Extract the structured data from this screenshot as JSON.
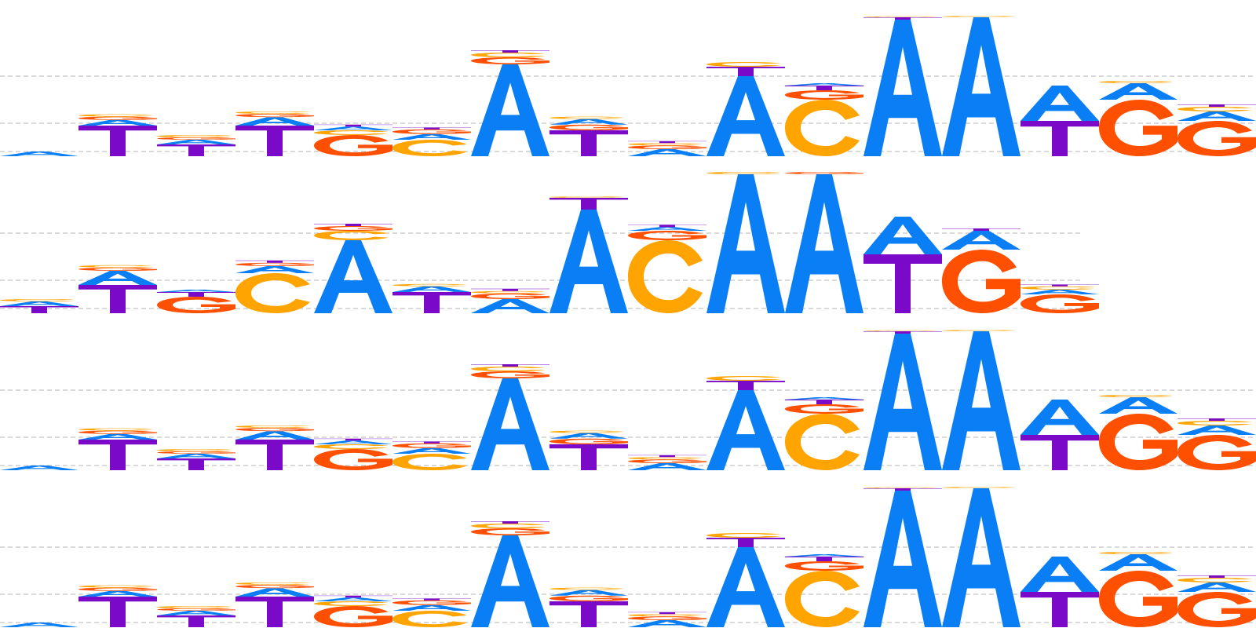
{
  "colors": {
    "A": "#0a7ff5",
    "C": "#ffa400",
    "G": "#ff4f00",
    "T": "#7a0ac8",
    "grid": "#b5b5b5"
  },
  "chart_data": [
    {
      "type": "sequence-logo",
      "grid": true,
      "columns": [
        [
          [
            "A",
            0.1
          ]
        ],
        [
          [
            "T",
            0.65
          ],
          [
            "A",
            0.12
          ],
          [
            "G",
            0.07
          ],
          [
            "C",
            0.05
          ]
        ],
        [
          [
            "T",
            0.25
          ],
          [
            "A",
            0.1
          ],
          [
            "G",
            0.05
          ],
          [
            "C",
            0.05
          ]
        ],
        [
          [
            "T",
            0.65
          ],
          [
            "A",
            0.18
          ],
          [
            "G",
            0.07
          ],
          [
            "C",
            0.05
          ]
        ],
        [
          [
            "G",
            0.45
          ],
          [
            "C",
            0.1
          ],
          [
            "A",
            0.08
          ],
          [
            "T",
            0.04
          ]
        ],
        [
          [
            "C",
            0.35
          ],
          [
            "A",
            0.12
          ],
          [
            "G",
            0.1
          ],
          [
            "T",
            0.04
          ]
        ],
        [
          [
            "A",
            1.95
          ],
          [
            "G",
            0.15
          ],
          [
            "C",
            0.1
          ],
          [
            "T",
            0.05
          ]
        ],
        [
          [
            "T",
            0.55
          ],
          [
            "G",
            0.12
          ],
          [
            "A",
            0.12
          ],
          [
            "C",
            0.05
          ]
        ],
        [
          [
            "A",
            0.15
          ],
          [
            "G",
            0.08
          ],
          [
            "C",
            0.05
          ],
          [
            "T",
            0.04
          ]
        ],
        [
          [
            "A",
            1.7
          ],
          [
            "T",
            0.2
          ],
          [
            "C",
            0.1
          ]
        ],
        [
          [
            "C",
            1.2
          ],
          [
            "G",
            0.2
          ],
          [
            "T",
            0.1
          ],
          [
            "A",
            0.05
          ]
        ],
        [
          [
            "A",
            2.9
          ],
          [
            "T",
            0.05
          ],
          [
            "C",
            0.02
          ]
        ],
        [
          [
            "A",
            2.95
          ],
          [
            "C",
            0.03
          ]
        ],
        [
          [
            "T",
            0.75
          ],
          [
            "A",
            0.75
          ]
        ],
        [
          [
            "G",
            1.2
          ],
          [
            "A",
            0.35
          ],
          [
            "C",
            0.05
          ]
        ],
        [
          [
            "G",
            0.75
          ],
          [
            "A",
            0.2
          ],
          [
            "C",
            0.1
          ],
          [
            "T",
            0.05
          ]
        ]
      ]
    },
    {
      "type": "sequence-logo",
      "grid": true,
      "columns": [
        [
          [
            "T",
            0.15
          ],
          [
            "A",
            0.1
          ],
          [
            "C",
            0.05
          ]
        ],
        [
          [
            "T",
            0.6
          ],
          [
            "A",
            0.3
          ],
          [
            "G",
            0.07
          ],
          [
            "C",
            0.05
          ]
        ],
        [
          [
            "G",
            0.35
          ],
          [
            "T",
            0.1
          ],
          [
            "A",
            0.05
          ]
        ],
        [
          [
            "C",
            0.85
          ],
          [
            "A",
            0.15
          ],
          [
            "G",
            0.07
          ],
          [
            "T",
            0.05
          ]
        ],
        [
          [
            "A",
            1.55
          ],
          [
            "C",
            0.2
          ],
          [
            "G",
            0.1
          ],
          [
            "T",
            0.05
          ]
        ],
        [
          [
            "T",
            0.45
          ],
          [
            "A",
            0.12
          ],
          [
            "C",
            0.05
          ]
        ],
        [
          [
            "A",
            0.3
          ],
          [
            "G",
            0.12
          ],
          [
            "C",
            0.05
          ],
          [
            "T",
            0.05
          ]
        ],
        [
          [
            "A",
            2.2
          ],
          [
            "T",
            0.25
          ],
          [
            "C",
            0.03
          ]
        ],
        [
          [
            "C",
            1.55
          ],
          [
            "G",
            0.2
          ],
          [
            "A",
            0.08
          ],
          [
            "T",
            0.05
          ]
        ],
        [
          [
            "A",
            2.95
          ],
          [
            "C",
            0.05
          ]
        ],
        [
          [
            "A",
            2.95
          ],
          [
            "G",
            0.05
          ]
        ],
        [
          [
            "T",
            1.25
          ],
          [
            "A",
            0.8
          ]
        ],
        [
          [
            "G",
            1.35
          ],
          [
            "A",
            0.4
          ],
          [
            "T",
            0.05
          ]
        ],
        [
          [
            "G",
            0.4
          ],
          [
            "A",
            0.1
          ],
          [
            "C",
            0.07
          ],
          [
            "T",
            0.04
          ]
        ]
      ]
    },
    {
      "type": "sequence-logo",
      "grid": true,
      "columns": [
        [
          [
            "A",
            0.1
          ]
        ],
        [
          [
            "T",
            0.65
          ],
          [
            "A",
            0.12
          ],
          [
            "G",
            0.07
          ],
          [
            "C",
            0.05
          ]
        ],
        [
          [
            "T",
            0.25
          ],
          [
            "A",
            0.1
          ],
          [
            "G",
            0.05
          ],
          [
            "C",
            0.05
          ]
        ],
        [
          [
            "T",
            0.65
          ],
          [
            "A",
            0.18
          ],
          [
            "G",
            0.07
          ],
          [
            "C",
            0.05
          ]
        ],
        [
          [
            "G",
            0.45
          ],
          [
            "C",
            0.1
          ],
          [
            "A",
            0.08
          ],
          [
            "T",
            0.04
          ]
        ],
        [
          [
            "C",
            0.35
          ],
          [
            "A",
            0.12
          ],
          [
            "G",
            0.1
          ],
          [
            "T",
            0.04
          ]
        ],
        [
          [
            "A",
            1.95
          ],
          [
            "G",
            0.15
          ],
          [
            "C",
            0.1
          ],
          [
            "T",
            0.05
          ]
        ],
        [
          [
            "T",
            0.55
          ],
          [
            "G",
            0.12
          ],
          [
            "A",
            0.12
          ],
          [
            "C",
            0.05
          ]
        ],
        [
          [
            "A",
            0.15
          ],
          [
            "G",
            0.08
          ],
          [
            "C",
            0.05
          ],
          [
            "T",
            0.04
          ]
        ],
        [
          [
            "A",
            1.7
          ],
          [
            "T",
            0.2
          ],
          [
            "C",
            0.1
          ]
        ],
        [
          [
            "C",
            1.2
          ],
          [
            "G",
            0.2
          ],
          [
            "T",
            0.1
          ],
          [
            "A",
            0.05
          ]
        ],
        [
          [
            "A",
            2.9
          ],
          [
            "T",
            0.05
          ],
          [
            "C",
            0.02
          ]
        ],
        [
          [
            "A",
            2.95
          ],
          [
            "C",
            0.03
          ]
        ],
        [
          [
            "T",
            0.75
          ],
          [
            "A",
            0.75
          ]
        ],
        [
          [
            "G",
            1.2
          ],
          [
            "A",
            0.35
          ],
          [
            "C",
            0.05
          ]
        ],
        [
          [
            "G",
            0.75
          ],
          [
            "A",
            0.2
          ],
          [
            "C",
            0.1
          ],
          [
            "T",
            0.05
          ]
        ]
      ]
    },
    {
      "type": "sequence-logo",
      "grid": true,
      "columns": [
        [
          [
            "A",
            0.1
          ]
        ],
        [
          [
            "T",
            0.65
          ],
          [
            "A",
            0.12
          ],
          [
            "G",
            0.07
          ],
          [
            "C",
            0.05
          ]
        ],
        [
          [
            "T",
            0.25
          ],
          [
            "A",
            0.1
          ],
          [
            "G",
            0.05
          ],
          [
            "C",
            0.05
          ]
        ],
        [
          [
            "T",
            0.65
          ],
          [
            "A",
            0.18
          ],
          [
            "G",
            0.07
          ],
          [
            "C",
            0.05
          ]
        ],
        [
          [
            "G",
            0.45
          ],
          [
            "C",
            0.1
          ],
          [
            "A",
            0.08
          ],
          [
            "T",
            0.04
          ]
        ],
        [
          [
            "C",
            0.35
          ],
          [
            "A",
            0.12
          ],
          [
            "G",
            0.1
          ],
          [
            "T",
            0.04
          ]
        ],
        [
          [
            "A",
            1.95
          ],
          [
            "G",
            0.15
          ],
          [
            "C",
            0.1
          ],
          [
            "T",
            0.05
          ]
        ],
        [
          [
            "T",
            0.55
          ],
          [
            "G",
            0.12
          ],
          [
            "A",
            0.12
          ],
          [
            "C",
            0.05
          ]
        ],
        [
          [
            "A",
            0.15
          ],
          [
            "G",
            0.08
          ],
          [
            "C",
            0.05
          ],
          [
            "T",
            0.04
          ]
        ],
        [
          [
            "A",
            1.7
          ],
          [
            "T",
            0.2
          ],
          [
            "C",
            0.1
          ]
        ],
        [
          [
            "C",
            1.2
          ],
          [
            "G",
            0.2
          ],
          [
            "T",
            0.1
          ],
          [
            "A",
            0.05
          ]
        ],
        [
          [
            "A",
            2.9
          ],
          [
            "T",
            0.05
          ],
          [
            "C",
            0.02
          ]
        ],
        [
          [
            "A",
            2.95
          ],
          [
            "C",
            0.03
          ]
        ],
        [
          [
            "T",
            0.75
          ],
          [
            "A",
            0.75
          ]
        ],
        [
          [
            "G",
            1.2
          ],
          [
            "A",
            0.35
          ],
          [
            "C",
            0.05
          ]
        ],
        [
          [
            "G",
            0.75
          ],
          [
            "A",
            0.2
          ],
          [
            "C",
            0.1
          ],
          [
            "T",
            0.05
          ]
        ]
      ]
    }
  ]
}
